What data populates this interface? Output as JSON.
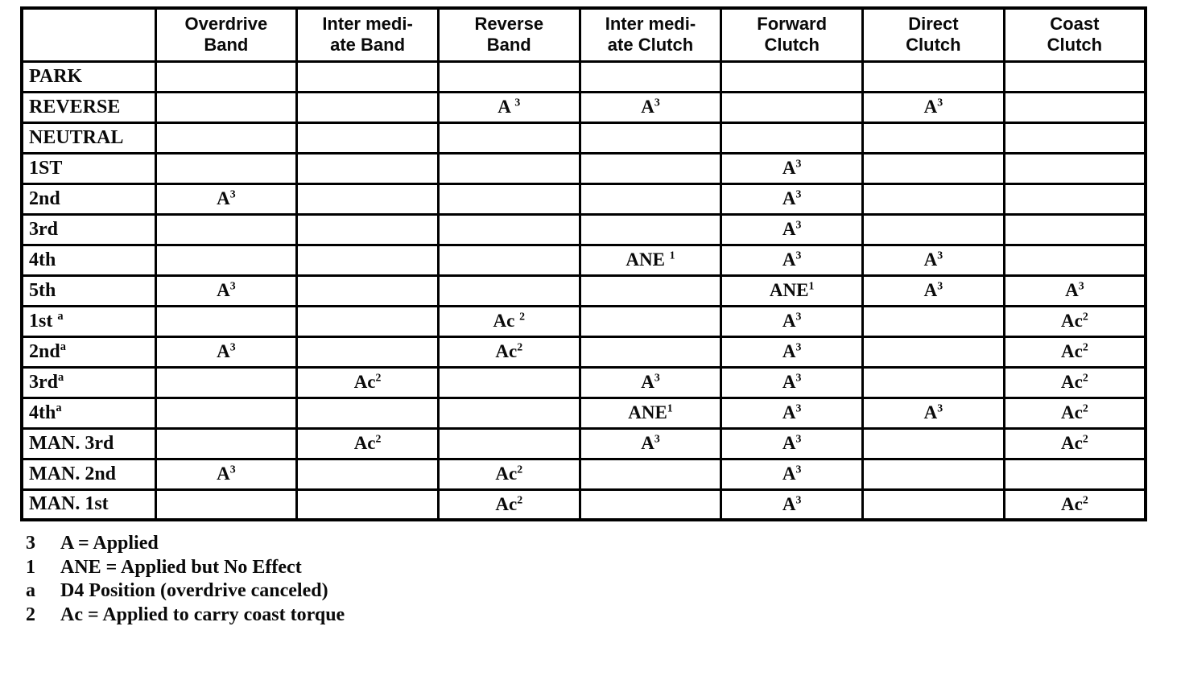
{
  "table": {
    "corner_header": "",
    "columns": [
      "Overdrive\nBand",
      "Inter medi-\nate Band",
      "Reverse\nBand",
      "Inter medi-\nate Clutch",
      "Forward\nClutch",
      "Direct\nClutch",
      "Coast\nClutch"
    ],
    "rows": [
      {
        "label": "PARK",
        "cells": [
          "",
          "",
          "",
          "",
          "",
          "",
          ""
        ]
      },
      {
        "label": "REVERSE",
        "cells": [
          "",
          "",
          "A ^3",
          "A^3",
          "",
          "A^3",
          ""
        ]
      },
      {
        "label": "NEUTRAL",
        "cells": [
          "",
          "",
          "",
          "",
          "",
          "",
          ""
        ]
      },
      {
        "label": "1ST",
        "cells": [
          "",
          "",
          "",
          "",
          "A^3",
          "",
          ""
        ]
      },
      {
        "label": "2nd",
        "cells": [
          "A^3",
          "",
          "",
          "",
          "A^3",
          "",
          ""
        ]
      },
      {
        "label": "3rd",
        "cells": [
          "",
          "",
          "",
          "",
          "A^3",
          "",
          ""
        ]
      },
      {
        "label": "4th",
        "cells": [
          "",
          "",
          "",
          "ANE ^1",
          "A^3",
          "A^3",
          ""
        ]
      },
      {
        "label": "5th",
        "cells": [
          "A^3",
          "",
          "",
          "",
          "ANE^1",
          "A^3",
          "A^3"
        ]
      },
      {
        "label": "1st ^a",
        "cells": [
          "",
          "",
          "Ac ^2",
          "",
          "A^3",
          "",
          "Ac^2"
        ]
      },
      {
        "label": "2nd^a",
        "cells": [
          "A^3",
          "",
          "Ac^2",
          "",
          "A^3",
          "",
          "Ac^2"
        ]
      },
      {
        "label": "3rd^a",
        "cells": [
          "",
          "Ac^2",
          "",
          "A^3",
          "A^3",
          "",
          "Ac^2"
        ]
      },
      {
        "label": "4th^a",
        "cells": [
          "",
          "",
          "",
          "ANE^1",
          "A^3",
          "A^3",
          "Ac^2"
        ]
      },
      {
        "label": "MAN. 3rd",
        "cells": [
          "",
          "Ac^2",
          "",
          "A^3",
          "A^3",
          "",
          "Ac^2"
        ]
      },
      {
        "label": "MAN. 2nd",
        "cells": [
          "A^3",
          "",
          "Ac^2",
          "",
          "A^3",
          "",
          ""
        ]
      },
      {
        "label": "MAN. 1st",
        "cells": [
          "",
          "",
          "Ac^2",
          "",
          "A^3",
          "",
          "Ac^2"
        ]
      }
    ]
  },
  "footnotes": [
    {
      "marker": "3",
      "text": "A = Applied"
    },
    {
      "marker": "1",
      "text": "ANE = Applied but No Effect"
    },
    {
      "marker": "a",
      "text": "D4 Position (overdrive canceled)"
    },
    {
      "marker": "2",
      "text": "Ac = Applied to carry coast torque"
    }
  ]
}
